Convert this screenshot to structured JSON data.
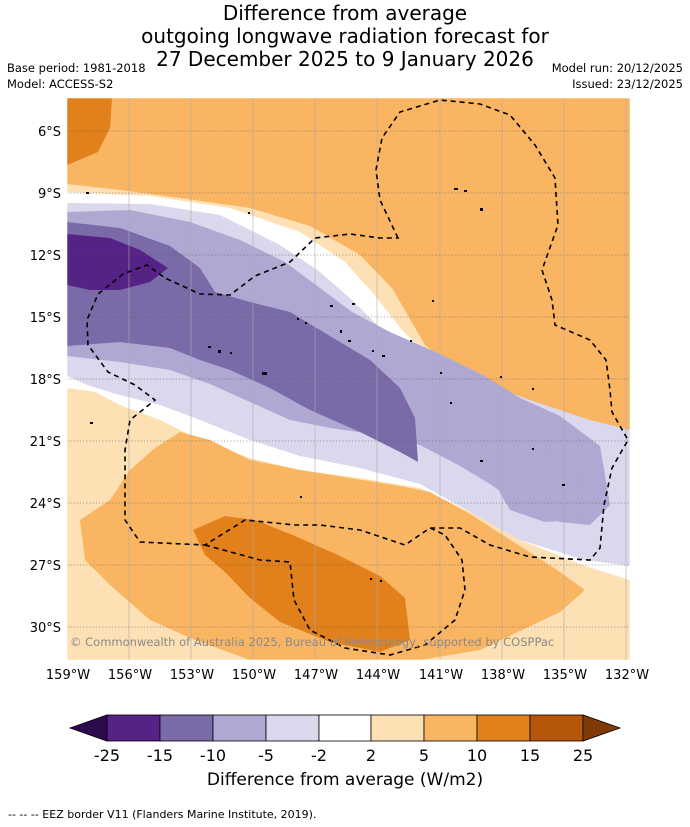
{
  "title": {
    "line1": "Difference from average",
    "line2": "outgoing longwave radiation forecast for",
    "line3": "27 December 2025 to 9 January 2026"
  },
  "meta": {
    "base_period": "Base period: 1981-2018",
    "model": "Model: ACCESS-S2",
    "model_run": "Model run: 20/12/2025",
    "issued": "Issued: 23/12/2025"
  },
  "map": {
    "lat_labels": [
      "6°S",
      "9°S",
      "12°S",
      "15°S",
      "18°S",
      "21°S",
      "24°S",
      "27°S",
      "30°S"
    ],
    "lon_labels": [
      "159°W",
      "156°W",
      "153°W",
      "150°W",
      "147°W",
      "144°W",
      "141°W",
      "138°W",
      "135°W",
      "132°W"
    ],
    "copyright": "© Commonwealth of Australia 2025, Bureau of Meteorology, supported by COSPPac"
  },
  "colorbar": {
    "ticks": [
      "-25",
      "-15",
      "-10",
      "-5",
      "-2",
      "2",
      "5",
      "10",
      "15",
      "25"
    ],
    "colors": [
      "#2d0a4e",
      "#552285",
      "#7a6aa8",
      "#afa8d2",
      "#d9d8ec",
      "#ffffff",
      "#fde0b4",
      "#fab563",
      "#e2801b",
      "#b55609",
      "#7f3a05"
    ],
    "label": "Difference from average (W/m2)"
  },
  "footer": "--  --  -- EEZ border V11 (Flanders Marine Institute, 2019)."
}
